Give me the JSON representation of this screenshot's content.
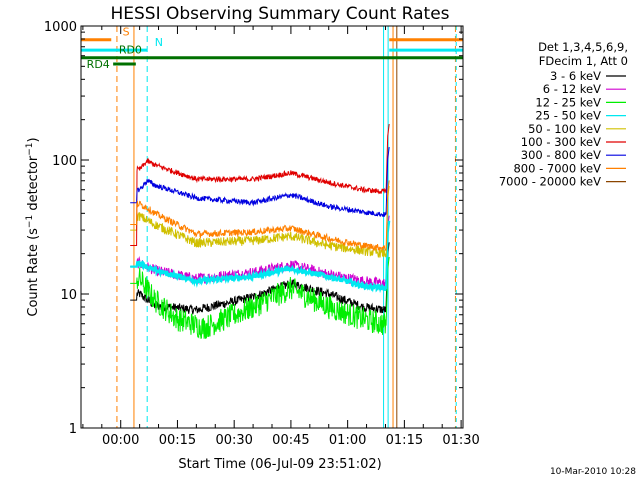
{
  "chart_data": {
    "type": "line",
    "title": "HESSI Observing Summary Count Rates",
    "ylabel": "Count Rate (s⁻¹ detector⁻¹)",
    "ylabel_main": "Count Rate (s",
    "ylabel_sup1": "−1",
    "ylabel_mid": " detector",
    "ylabel_sup2": "−1",
    "ylabel_end": ")",
    "xlabel": "Start Time (06-Jul-09 23:51:02)",
    "yscale": "log",
    "ylim": [
      1,
      1000
    ],
    "xlim_minutes": [
      -10.5,
      90.5
    ],
    "x_tick_minutes": [
      0,
      15,
      30,
      45,
      60,
      75,
      90
    ],
    "x_tick_labels": [
      "00:00",
      "00:15",
      "00:30",
      "00:45",
      "01:00",
      "01:15",
      "01:30"
    ],
    "y_tick_values": [
      1,
      10,
      100,
      1000
    ],
    "y_tick_labels": [
      "1",
      "10",
      "100",
      "1000"
    ],
    "legend_header": [
      "Det 1,3,4,5,6,9,",
      "FDecim 1, Att 0"
    ],
    "series": [
      {
        "name": "3 - 6 keV",
        "color": "#000000",
        "start_value": 9,
        "points": [
          [
            5,
            10
          ],
          [
            9,
            8.2
          ],
          [
            20,
            7.6
          ],
          [
            35,
            9.5
          ],
          [
            45,
            12
          ],
          [
            55,
            10
          ],
          [
            64,
            8
          ],
          [
            70,
            7.6
          ]
        ]
      },
      {
        "name": "6 - 12 keV",
        "color": "#d000d0",
        "start_value": 16,
        "points": [
          [
            5,
            17
          ],
          [
            9,
            15
          ],
          [
            20,
            13
          ],
          [
            35,
            14.5
          ],
          [
            45,
            16.5
          ],
          [
            55,
            14
          ],
          [
            64,
            12.5
          ],
          [
            70,
            12
          ]
        ]
      },
      {
        "name": "12 - 25 keV",
        "color": "#00ee00",
        "start_value": 12,
        "points": [
          [
            5,
            13
          ],
          [
            9,
            9
          ],
          [
            15,
            6.5
          ],
          [
            22,
            5.6
          ],
          [
            35,
            8
          ],
          [
            45,
            11
          ],
          [
            55,
            8
          ],
          [
            64,
            6.5
          ],
          [
            70,
            5.9
          ]
        ]
      },
      {
        "name": "25 - 50 keV",
        "color": "#00e8f0",
        "start_value": 16,
        "points": [
          [
            5,
            17
          ],
          [
            9,
            15
          ],
          [
            20,
            12.5
          ],
          [
            35,
            13.5
          ],
          [
            45,
            15.5
          ],
          [
            55,
            13.5
          ],
          [
            64,
            11.5
          ],
          [
            70,
            11
          ]
        ]
      },
      {
        "name": "50 - 100 keV",
        "color": "#d0c000",
        "start_value": 30,
        "points": [
          [
            5,
            38
          ],
          [
            9,
            33
          ],
          [
            20,
            24
          ],
          [
            35,
            25
          ],
          [
            45,
            27
          ],
          [
            55,
            23
          ],
          [
            64,
            21
          ],
          [
            70,
            20
          ]
        ]
      },
      {
        "name": "100 - 300 keV",
        "color": "#e00000",
        "start_value": 23,
        "points": [
          [
            5,
            85
          ],
          [
            7,
            98
          ],
          [
            9,
            92
          ],
          [
            20,
            72
          ],
          [
            35,
            72
          ],
          [
            45,
            80
          ],
          [
            55,
            68
          ],
          [
            64,
            60
          ],
          [
            70,
            58
          ]
        ]
      },
      {
        "name": "300 - 800 keV",
        "color": "#0000e0",
        "start_value": 48,
        "points": [
          [
            5,
            60
          ],
          [
            7,
            70
          ],
          [
            9,
            65
          ],
          [
            20,
            52
          ],
          [
            35,
            48
          ],
          [
            45,
            55
          ],
          [
            55,
            45
          ],
          [
            64,
            41
          ],
          [
            70,
            39
          ]
        ]
      },
      {
        "name": "800 - 7000 keV",
        "color": "#ff8000",
        "start_value": 33,
        "points": [
          [
            5,
            47
          ],
          [
            7,
            44
          ],
          [
            9,
            40
          ],
          [
            20,
            28
          ],
          [
            35,
            29
          ],
          [
            45,
            31
          ],
          [
            55,
            26
          ],
          [
            64,
            23
          ],
          [
            70,
            22
          ]
        ]
      },
      {
        "name": "7000 - 20000 keV",
        "color": "#8b4500",
        "start_value": null,
        "points": []
      }
    ],
    "flags": [
      {
        "name": "S",
        "color": "#ff8000",
        "level_value": 790
      },
      {
        "name": "N",
        "color": "#00e8f0",
        "level_value": 660
      },
      {
        "name": "RD0",
        "color": "#007000",
        "level_value": 580
      },
      {
        "name": "RD4",
        "color": "#007000",
        "level_value": 520
      }
    ]
  },
  "footer_date": "10-Mar-2010 10:28"
}
